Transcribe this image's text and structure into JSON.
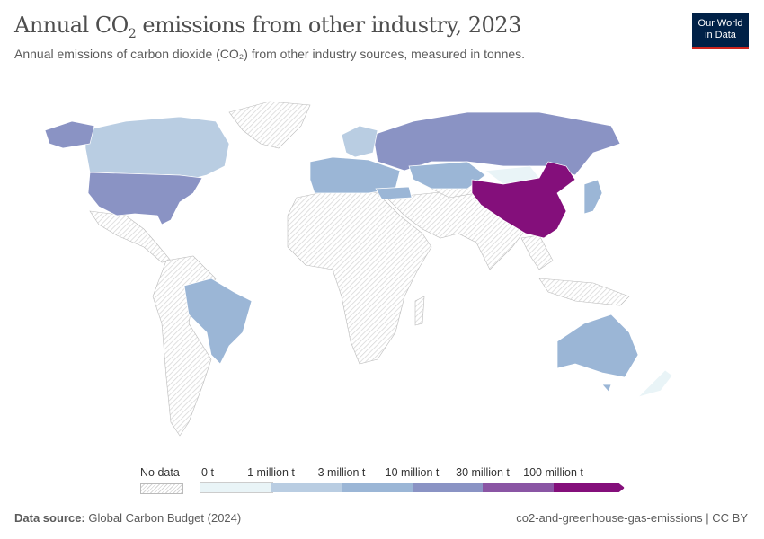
{
  "header": {
    "title_pre": "Annual CO",
    "title_sub": "2",
    "title_post": " emissions from other industry, 2023",
    "subtitle": "Annual emissions of carbon dioxide (CO₂) from other industry sources, measured in tonnes.",
    "logo_line1": "Our World",
    "logo_line2": "in Data"
  },
  "legend": {
    "no_data": "No data",
    "ticks": [
      "0 t",
      "1 million t",
      "3 million t",
      "10 million t",
      "30 million t",
      "100 million t"
    ],
    "bins": [
      {
        "range": "0–1 million t",
        "color": "#e9f4f7"
      },
      {
        "range": "1–3 million t",
        "color": "#b9cde2"
      },
      {
        "range": "3–10 million t",
        "color": "#9bb6d6"
      },
      {
        "range": "10–30 million t",
        "color": "#8a93c4"
      },
      {
        "range": "30–100 million t",
        "color": "#8a55a4"
      },
      {
        "range": "100+ million t",
        "color": "#840f7b"
      }
    ]
  },
  "map": {
    "colors": {
      "no_data_hatch": "#d6d6d6",
      "border": "#ffffff"
    },
    "countries": [
      {
        "name": "China",
        "bin": 5
      },
      {
        "name": "United States",
        "bin": 3
      },
      {
        "name": "Russia",
        "bin": 3
      },
      {
        "name": "Canada",
        "bin": 1
      },
      {
        "name": "Brazil",
        "bin": 2
      },
      {
        "name": "Australia",
        "bin": 2
      },
      {
        "name": "Kazakhstan",
        "bin": 2
      },
      {
        "name": "Turkey",
        "bin": 2
      },
      {
        "name": "Japan",
        "bin": 2
      },
      {
        "name": "Europe (various)",
        "bin": 2
      },
      {
        "name": "Scandinavia",
        "bin": 1
      },
      {
        "name": "New Zealand",
        "bin": 0
      },
      {
        "name": "Mongolia",
        "bin": 0
      },
      {
        "name": "South Korea",
        "bin": 2
      }
    ]
  },
  "footer": {
    "source_label": "Data source:",
    "source": "Global Carbon Budget (2024)",
    "slug": "co2-and-greenhouse-gas-emissions | CC BY"
  }
}
